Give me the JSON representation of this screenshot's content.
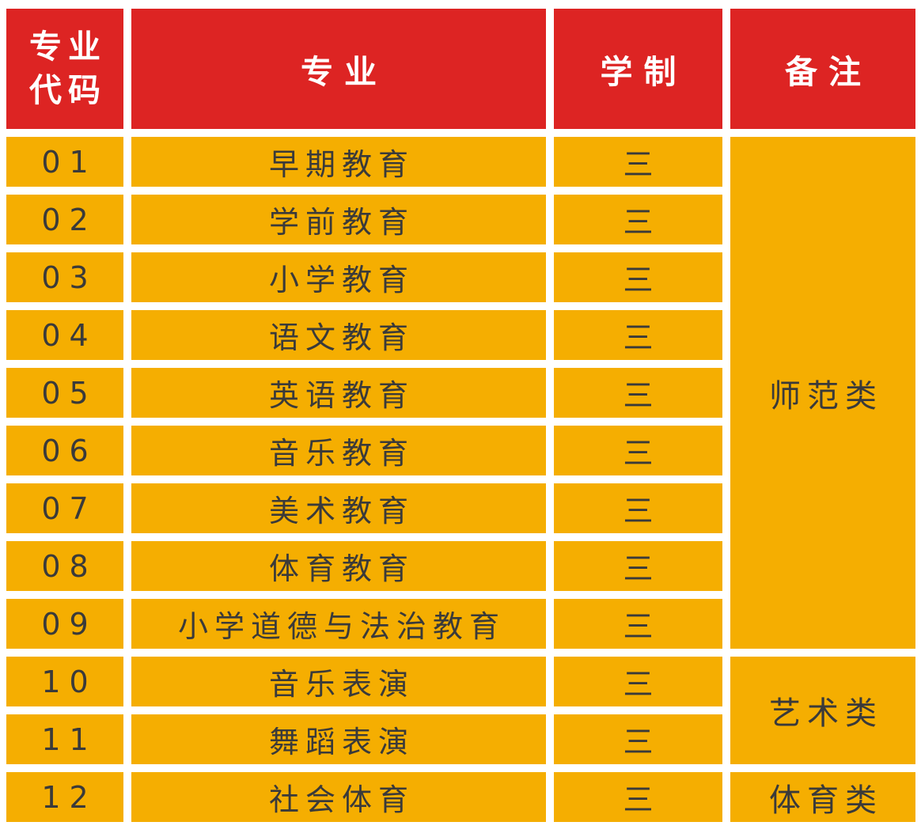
{
  "table": {
    "colors": {
      "header_bg": "#dd2423",
      "header_text": "#ffffff",
      "cell_bg": "#f5ae01",
      "cell_text": "#3a3a3a",
      "page_bg": "#ffffff"
    },
    "columns": [
      {
        "key": "code",
        "label": "专业\n代码"
      },
      {
        "key": "major",
        "label": "专业"
      },
      {
        "key": "duration",
        "label": "学制"
      },
      {
        "key": "remark",
        "label": "备注"
      }
    ],
    "rows": [
      {
        "code": "01",
        "major": "早期教育",
        "duration": "三"
      },
      {
        "code": "02",
        "major": "学前教育",
        "duration": "三"
      },
      {
        "code": "03",
        "major": "小学教育",
        "duration": "三"
      },
      {
        "code": "04",
        "major": "语文教育",
        "duration": "三"
      },
      {
        "code": "05",
        "major": "英语教育",
        "duration": "三"
      },
      {
        "code": "06",
        "major": "音乐教育",
        "duration": "三"
      },
      {
        "code": "07",
        "major": "美术教育",
        "duration": "三"
      },
      {
        "code": "08",
        "major": "体育教育",
        "duration": "三"
      },
      {
        "code": "09",
        "major": "小学道德与法治教育",
        "duration": "三"
      },
      {
        "code": "10",
        "major": "音乐表演",
        "duration": "三"
      },
      {
        "code": "11",
        "major": "舞蹈表演",
        "duration": "三"
      },
      {
        "code": "12",
        "major": "社会体育",
        "duration": "三"
      }
    ],
    "remark_groups": [
      {
        "label": "师范类",
        "rows": "01-09"
      },
      {
        "label": "艺术类",
        "rows": "10-11"
      },
      {
        "label": "体育类",
        "rows": "12"
      }
    ]
  }
}
